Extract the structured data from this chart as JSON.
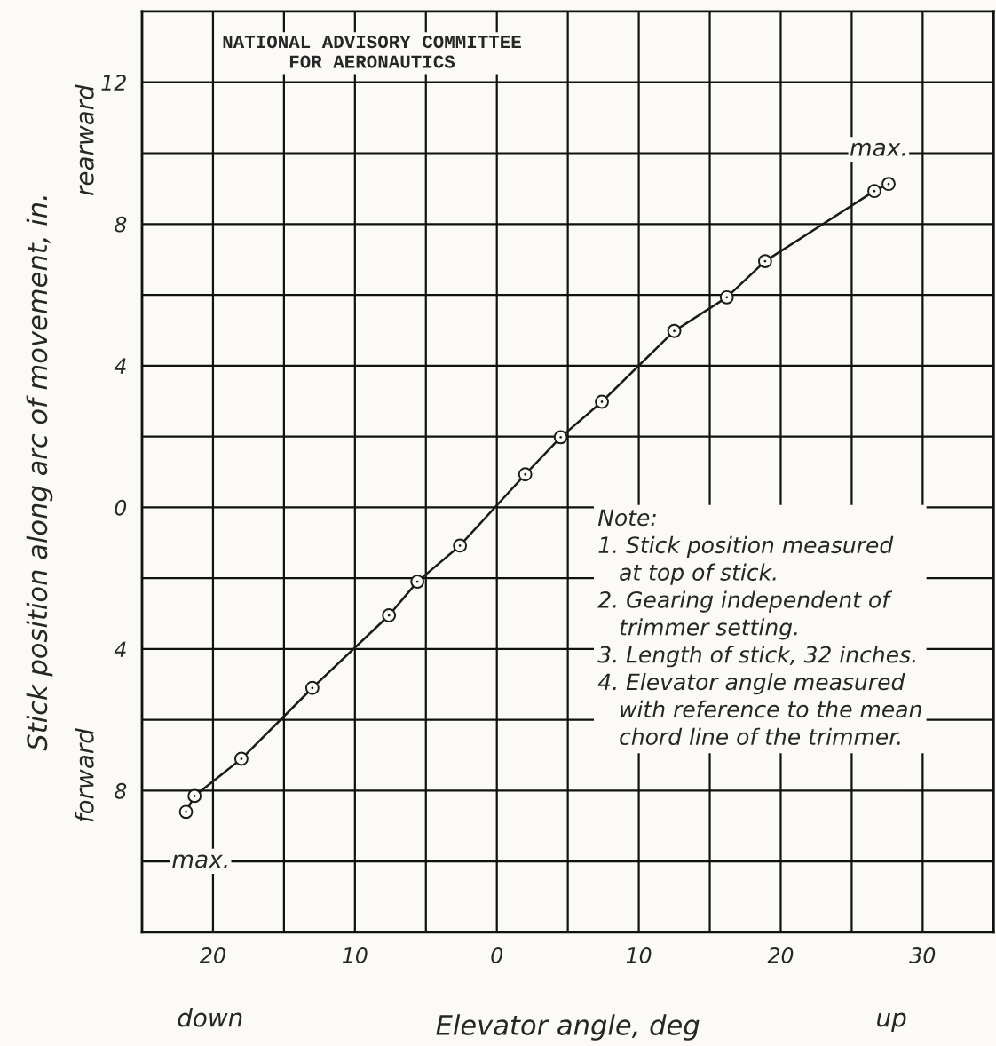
{
  "chart_data": {
    "type": "line",
    "xlabel": "Elevator angle, deg",
    "ylabel": "Stick position along arc of movement, in.",
    "x": [
      -21.9,
      -21.3,
      -18,
      -13,
      -7.6,
      -5.6,
      -2.6,
      2,
      4.5,
      7.4,
      12.5,
      16.2,
      18.9,
      26.6,
      27.6
    ],
    "series": [
      {
        "color": "#1a1a1a",
        "values": [
          -8.6,
          -8.15,
          -7.1,
          -5.1,
          -3.05,
          -2.1,
          -1.08,
          0.93,
          1.98,
          2.98,
          4.98,
          5.93,
          6.95,
          8.93,
          9.13
        ]
      }
    ],
    "marker": "circle",
    "line_style": "solid",
    "xlim": [
      -25,
      35
    ],
    "ylim": [
      -12,
      14
    ],
    "xticks": [
      {
        "value": -20,
        "label": "20"
      },
      {
        "value": -15,
        "label": null
      },
      {
        "value": -10,
        "label": "10"
      },
      {
        "value": -5,
        "label": null
      },
      0,
      {
        "value": 5,
        "label": null
      },
      10,
      {
        "value": 15,
        "label": null
      },
      20,
      {
        "value": 25,
        "label": null
      },
      30
    ],
    "yticks": [
      {
        "value": -10,
        "label": null
      },
      {
        "value": -8,
        "label": "8"
      },
      {
        "value": -6,
        "label": null
      },
      {
        "value": -4,
        "label": "4"
      },
      {
        "value": -2,
        "label": null
      },
      0,
      {
        "value": 2,
        "label": null
      },
      4,
      {
        "value": 6,
        "label": null
      },
      8,
      {
        "value": 10,
        "label": null
      },
      12
    ],
    "grid": true,
    "annotations": [
      "NATIONAL ADVISORY COMMITTEE\nFOR AERONAUTICS",
      {
        "text": "max.",
        "x": -21.9,
        "y": -8.6
      },
      {
        "text": "max.",
        "x": 27.6,
        "y": 9.13
      },
      "Note:\n1. Stick position measured\n   at top of stick.\n2. Gearing independent of\n   trimmer setting.\n3. Length of stick, 32 inches.\n4. Elevator angle measured\n   with reference to the mean\n   chord line of the trimmer.",
      "rearward",
      "forward",
      "down",
      "up"
    ]
  }
}
